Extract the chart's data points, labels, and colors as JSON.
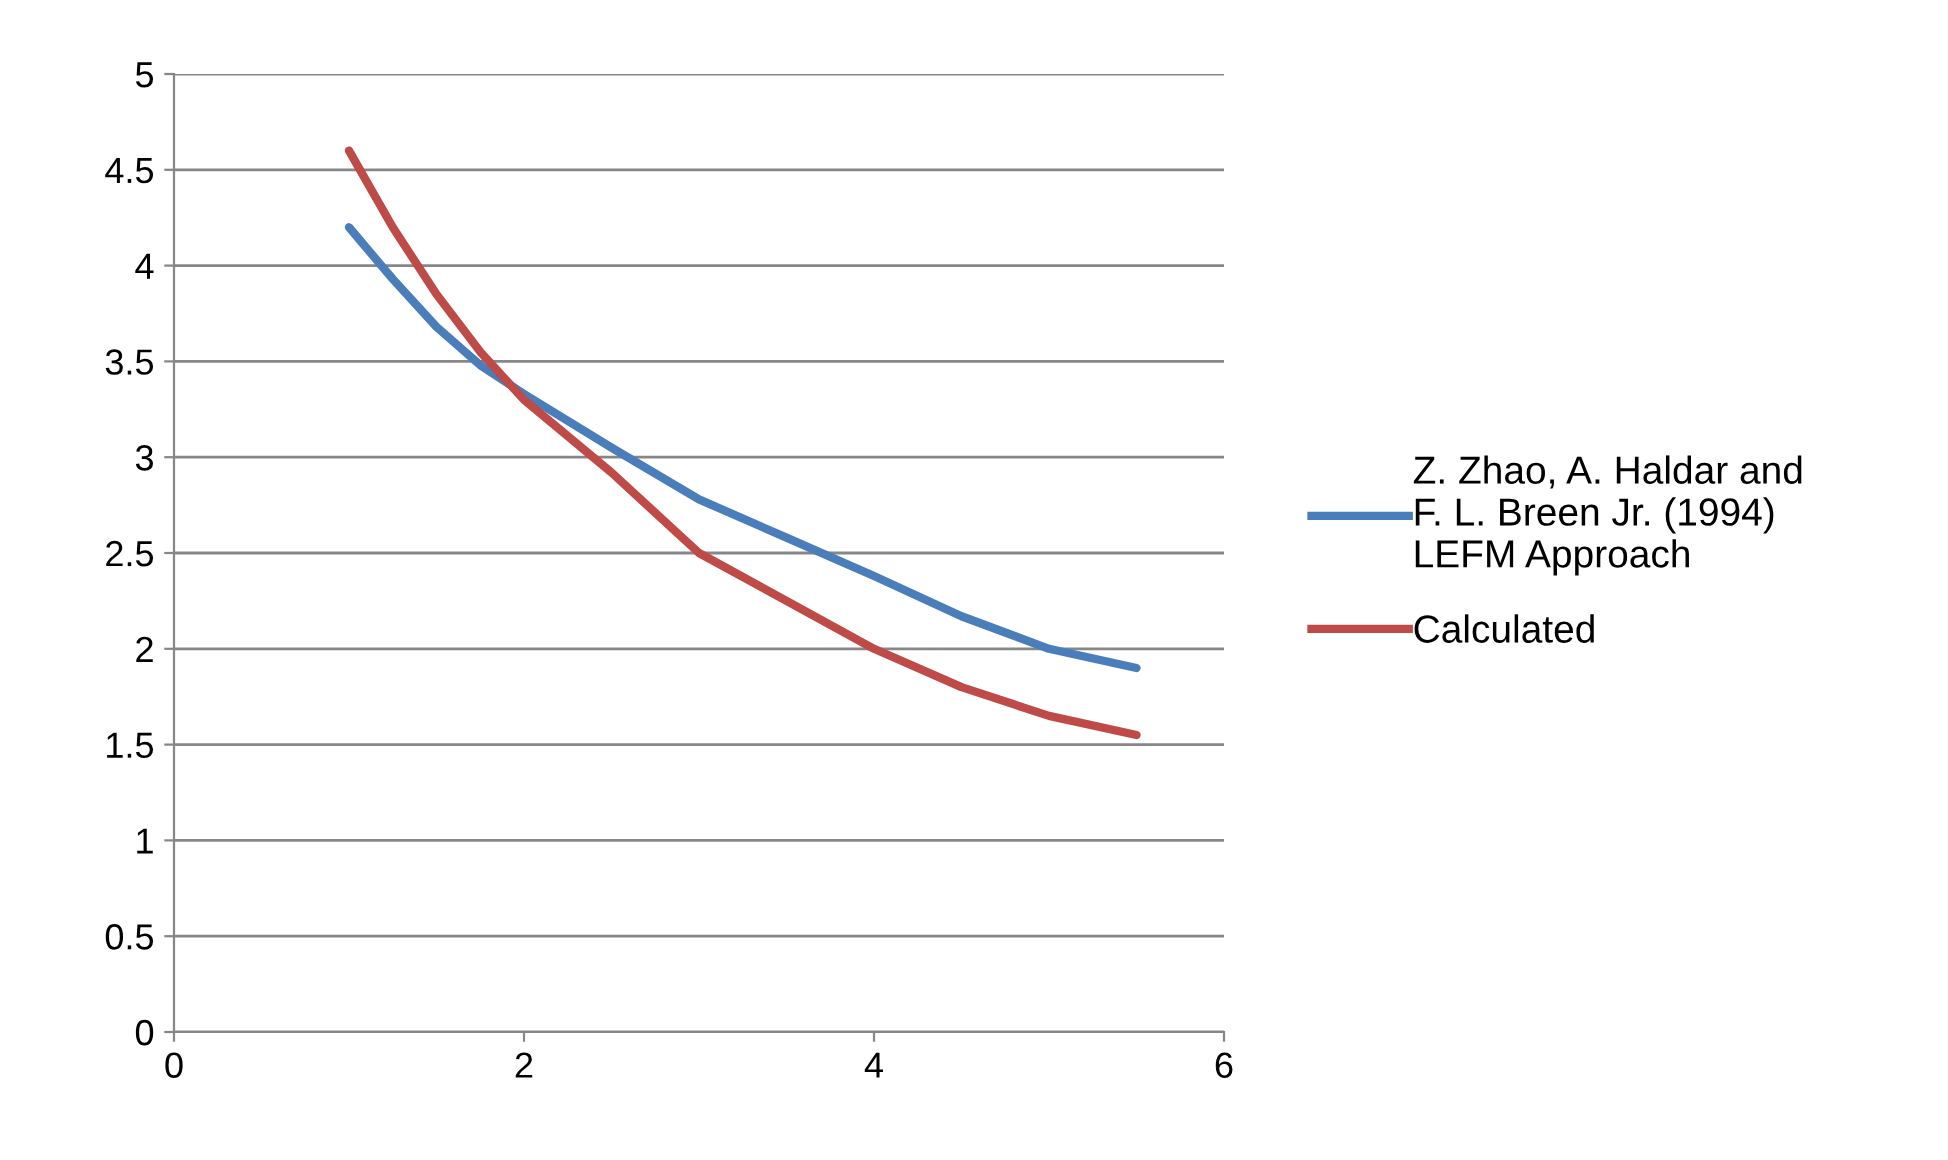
{
  "chart_data": {
    "type": "line",
    "xlim": [
      0,
      6
    ],
    "xticks": [
      0,
      2,
      4,
      6
    ],
    "ylim": [
      0,
      5
    ],
    "yticks": [
      0,
      0.5,
      1,
      1.5,
      2,
      2.5,
      3,
      3.5,
      4,
      4.5,
      5
    ],
    "grid": "y",
    "legend": "right",
    "marker": "none",
    "line_style": "solid",
    "series": [
      {
        "name": "Z. Zhao, A. Haldar and\nF. L. Breen Jr. (1994)\nLEFM Approach",
        "color": "#4a7ebb",
        "x": [
          1,
          1.25,
          1.5,
          1.75,
          2,
          2.5,
          3,
          3.5,
          4,
          4.5,
          5,
          5.5
        ],
        "values": [
          4.2,
          3.93,
          3.68,
          3.48,
          3.33,
          3.05,
          2.78,
          2.58,
          2.38,
          2.17,
          2.0,
          1.9
        ]
      },
      {
        "name": "Calculated",
        "color": "#be4b48",
        "x": [
          1,
          1.25,
          1.5,
          1.75,
          2,
          2.5,
          3,
          3.5,
          4,
          4.5,
          5,
          5.5
        ],
        "values": [
          4.6,
          4.2,
          3.85,
          3.55,
          3.3,
          2.92,
          2.5,
          2.25,
          2.0,
          1.8,
          1.65,
          1.55
        ]
      }
    ]
  }
}
